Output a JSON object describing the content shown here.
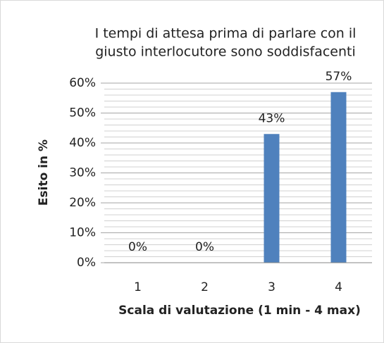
{
  "chart_data": {
    "type": "bar",
    "title": [
      "I tempi di attesa prima di parlare con il",
      "giusto interlocutore sono soddisfacenti"
    ],
    "y_label": "Esito in %",
    "x_label": "Scala di valutazione (1 min - 4 max)",
    "categories": [
      "1",
      "2",
      "3",
      "4"
    ],
    "values": [
      0,
      0,
      43,
      57
    ],
    "value_labels": [
      "0%",
      "0%",
      "43%",
      "57%"
    ],
    "color": "#4f81bd",
    "ylim": [
      0,
      60
    ],
    "yticks": [
      {
        "value": 0,
        "label": "0%"
      },
      {
        "value": 10,
        "label": "10%"
      },
      {
        "value": 20,
        "label": "20%"
      },
      {
        "value": 30,
        "label": "30%"
      },
      {
        "value": 40,
        "label": "40%"
      },
      {
        "value": 50,
        "label": "50%"
      },
      {
        "value": 60,
        "label": "60%"
      }
    ],
    "minor_yticks": [
      2,
      4,
      6,
      8,
      12,
      14,
      16,
      18,
      22,
      24,
      26,
      28,
      32,
      34,
      36,
      38,
      42,
      44,
      46,
      48,
      52,
      54,
      56,
      58
    ],
    "grid": true
  }
}
